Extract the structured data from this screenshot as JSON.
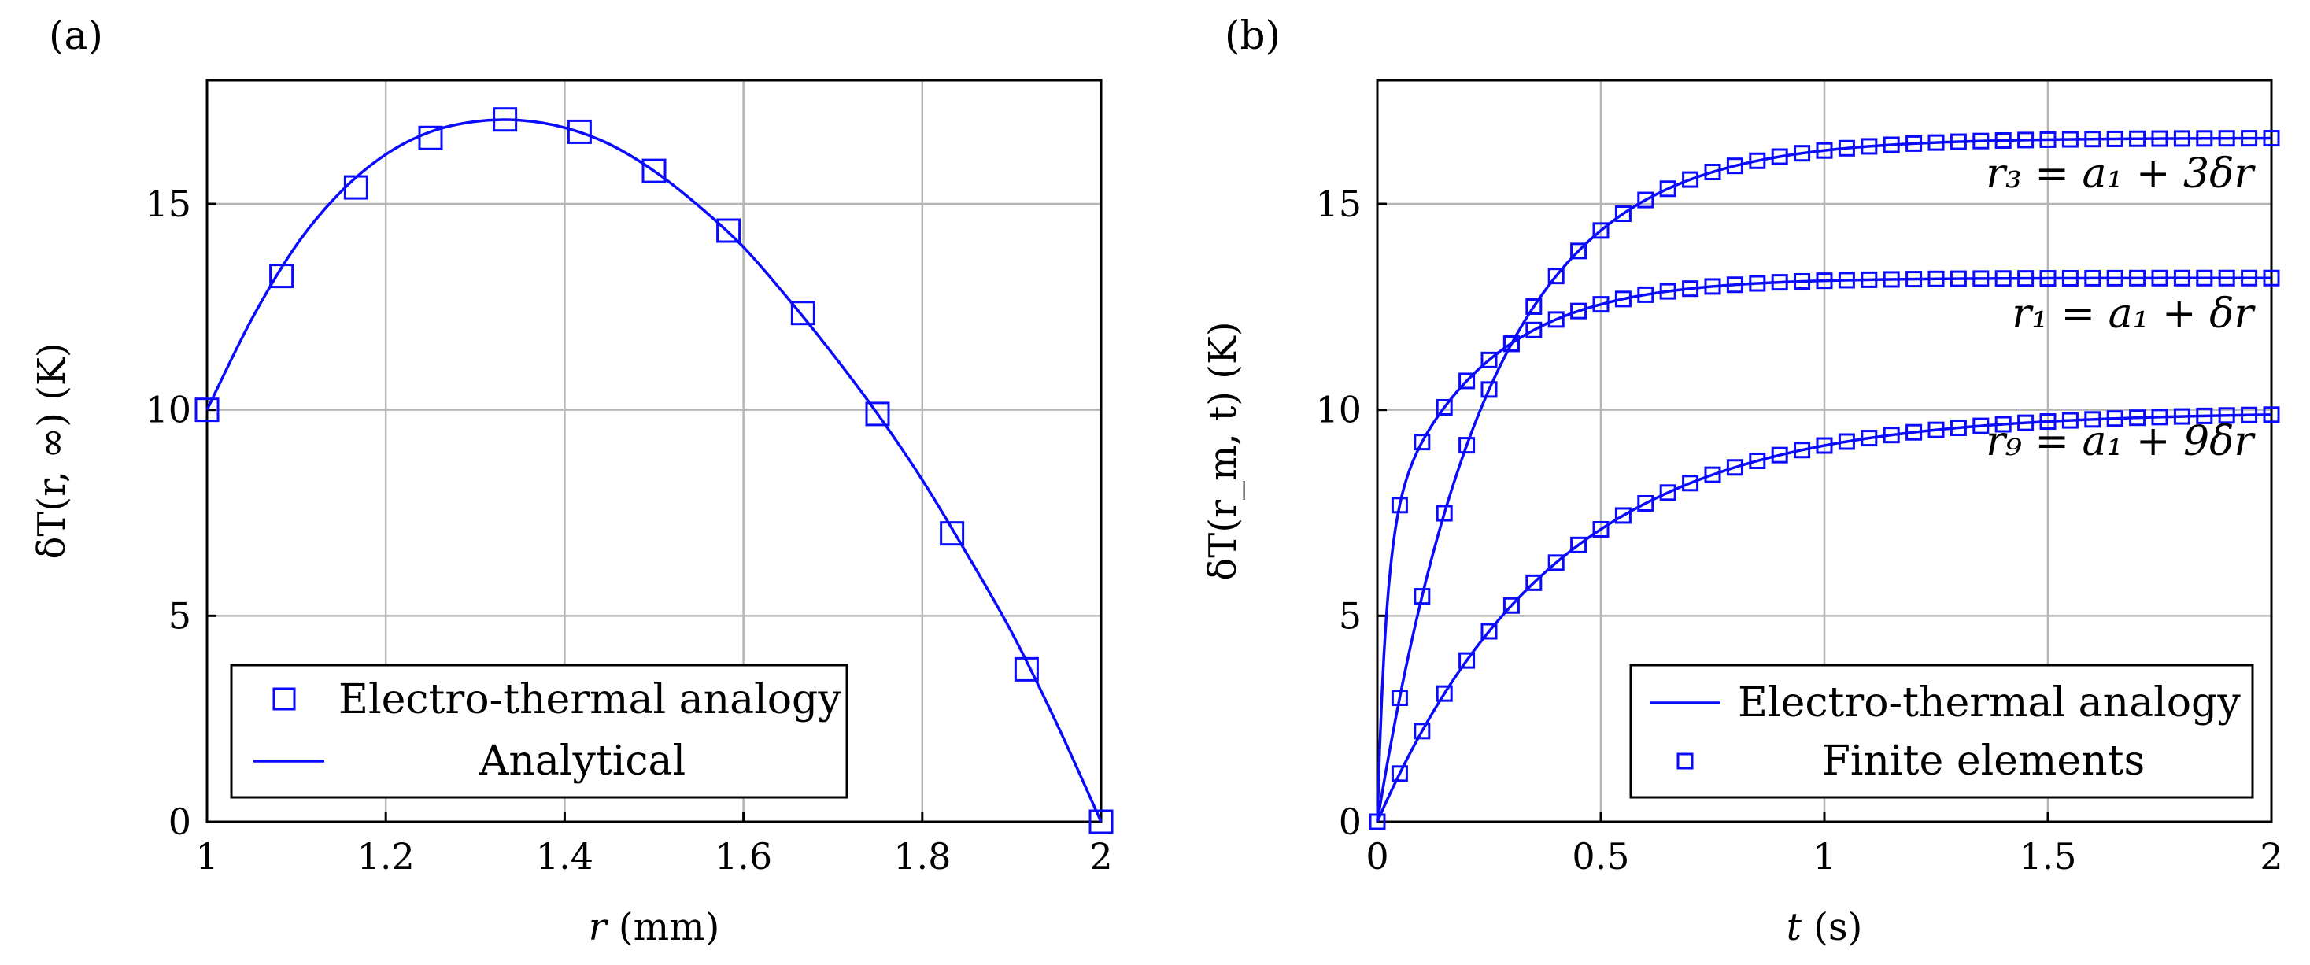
{
  "chart_data": [
    {
      "panel": "(a)",
      "type": "line",
      "title": "",
      "xlabel_var": "r",
      "xlabel_unit": " (mm)",
      "ylabel": "δT(r, ∞) (K)",
      "xlim": [
        1,
        2
      ],
      "ylim": [
        0,
        18
      ],
      "xticks": [
        1,
        1.2,
        1.4,
        1.6,
        1.8,
        2
      ],
      "xtick_labels": [
        "1",
        "1.2",
        "1.4",
        "1.6",
        "1.8",
        "2"
      ],
      "yticks": [
        0,
        5,
        10,
        15
      ],
      "ytick_labels": [
        "0",
        "5",
        "10",
        "15"
      ],
      "grid": true,
      "legend_position": "bottom-center",
      "legend": [
        "Electro-thermal analogy",
        "Analytical"
      ],
      "series": [
        {
          "name": "Electro-thermal analogy",
          "style": "markers",
          "x": [
            1.0,
            1.0833,
            1.1667,
            1.25,
            1.3333,
            1.4167,
            1.5,
            1.5833,
            1.6667,
            1.75,
            1.8333,
            1.9167,
            2.0
          ],
          "y": [
            10.0,
            13.25,
            15.4,
            16.6,
            17.05,
            16.75,
            15.8,
            14.35,
            12.35,
            9.9,
            7.0,
            3.7,
            0.0
          ]
        },
        {
          "name": "Analytical",
          "style": "line",
          "x": [
            1.0,
            1.05,
            1.1,
            1.15,
            1.2,
            1.25,
            1.3,
            1.35,
            1.4,
            1.45,
            1.5,
            1.55,
            1.6,
            1.65,
            1.7,
            1.75,
            1.8,
            1.85,
            1.9,
            1.95,
            2.0
          ],
          "y": [
            10.0,
            12.2,
            14.0,
            15.3,
            16.2,
            16.75,
            17.0,
            17.03,
            16.85,
            16.45,
            15.8,
            14.95,
            13.95,
            12.7,
            11.35,
            9.9,
            8.3,
            6.5,
            4.6,
            2.4,
            0.0
          ]
        }
      ]
    },
    {
      "panel": "(b)",
      "type": "line",
      "title": "",
      "xlabel_var": "t",
      "xlabel_unit": " (s)",
      "ylabel": "δT(r_m, t) (K)",
      "xlim": [
        0,
        2
      ],
      "ylim": [
        0,
        18
      ],
      "xticks": [
        0,
        0.5,
        1,
        1.5,
        2
      ],
      "xtick_labels": [
        "0",
        "0.5",
        "1",
        "1.5",
        "2"
      ],
      "yticks": [
        0,
        5,
        10,
        15
      ],
      "ytick_labels": [
        "0",
        "5",
        "10",
        "15"
      ],
      "grid": true,
      "legend_position": "bottom-right",
      "legend": [
        "Electro-thermal analogy",
        "Finite elements"
      ],
      "annotations": [
        {
          "text": "r₃ = a₁ + 3δr",
          "x": 1.96,
          "y": 15.4
        },
        {
          "text": "r₁ = a₁ + δr",
          "x": 1.96,
          "y": 12.0
        },
        {
          "text": "r₉ = a₁ + 9δr",
          "x": 1.96,
          "y": 8.9
        }
      ],
      "series": [
        {
          "name": "r₃ = a₁ + 3δr",
          "steady": 16.6,
          "tau": 0.25
        },
        {
          "name": "r₁ = a₁ + δr",
          "steady": 13.2,
          "tau": 0.22,
          "fast_amp": 7.0,
          "fast_tau": 0.02
        },
        {
          "name": "r₉ = a₁ + 9δr",
          "steady": 9.95,
          "tau": 0.4
        }
      ],
      "sample_step": 0.05
    }
  ]
}
